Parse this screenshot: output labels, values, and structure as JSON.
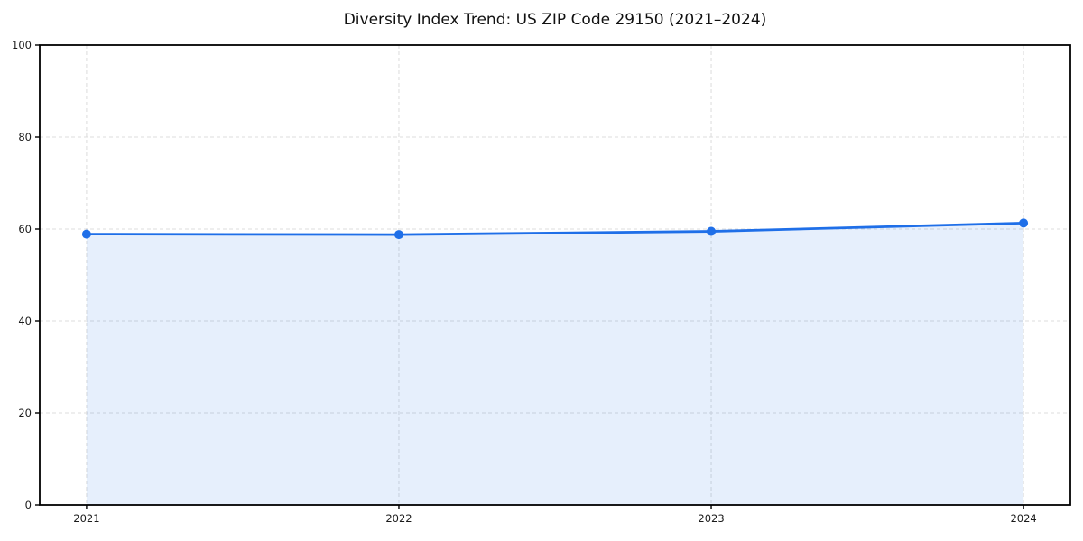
{
  "chart_data": {
    "type": "area",
    "title": "Diversity Index Trend: US ZIP Code 29150 (2021–2024)",
    "x": [
      2021,
      2022,
      2023,
      2024
    ],
    "series": [
      {
        "name": "Diversity Index",
        "values": [
          58.9,
          58.8,
          59.5,
          61.3
        ]
      }
    ],
    "xlabel": "",
    "ylabel": "",
    "xticks": [
      2021,
      2022,
      2023,
      2024
    ],
    "yticks": [
      0,
      20,
      40,
      60,
      80,
      100
    ],
    "xlim": [
      2020.85,
      2024.15
    ],
    "ylim": [
      0,
      100
    ],
    "grid": true,
    "grid_style": "dashed",
    "legend": "none",
    "colors": {
      "line": "#1f6fe8",
      "marker": "#1f6fe8",
      "fill": "#1f6fe8",
      "fill_opacity": 0.11,
      "grid": "#dcdcdc",
      "spine": "#000000",
      "tick": "#000000",
      "tick_label": "#1a1a1a",
      "title": "#111111",
      "background": "#ffffff"
    }
  }
}
